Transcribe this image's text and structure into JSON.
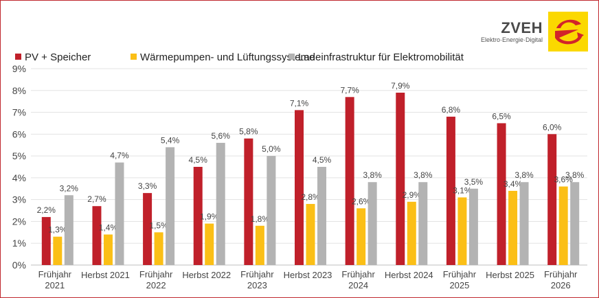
{
  "logo": {
    "name": "ZVEH",
    "tagline": "Elektro·Energie·Digital",
    "colors": {
      "bg": "#fbd800",
      "mark": "#d2232a"
    }
  },
  "chart_data": {
    "type": "bar",
    "categories": [
      [
        "Frühjahr",
        "2021"
      ],
      [
        "Herbst 2021"
      ],
      [
        "Frühjahr",
        "2022"
      ],
      [
        "Herbst 2022"
      ],
      [
        "Frühjahr",
        "2023"
      ],
      [
        "Herbst 2023"
      ],
      [
        "Frühjahr",
        "2024"
      ],
      [
        "Herbst 2024"
      ],
      [
        "Frühjahr",
        "2025"
      ],
      [
        "Herbst 2025"
      ],
      [
        "Frühjahr",
        "2026"
      ]
    ],
    "series": [
      {
        "name": "PV + Speicher",
        "color": "#c0202a",
        "values": [
          2.2,
          2.7,
          3.3,
          4.5,
          5.8,
          7.1,
          7.7,
          7.9,
          6.8,
          6.5,
          6.0
        ]
      },
      {
        "name": "Wärmepumpen- und Lüftungssysteme",
        "color": "#fbbf16",
        "values": [
          1.3,
          1.4,
          1.5,
          1.9,
          1.8,
          2.8,
          2.6,
          2.9,
          3.1,
          3.4,
          3.6
        ]
      },
      {
        "name": "Ladeinfrastruktur für Elektromobilität",
        "color": "#b3b3b3",
        "values": [
          3.2,
          4.7,
          5.4,
          5.6,
          5.0,
          4.5,
          3.8,
          3.8,
          3.5,
          3.8,
          3.8
        ]
      }
    ],
    "ylim": [
      0,
      9
    ],
    "yticks": [
      "0%",
      "1%",
      "2%",
      "3%",
      "4%",
      "5%",
      "6%",
      "7%",
      "8%",
      "9%"
    ],
    "grid": true,
    "legend": "top-left",
    "value_format": "percent, comma decimal"
  }
}
